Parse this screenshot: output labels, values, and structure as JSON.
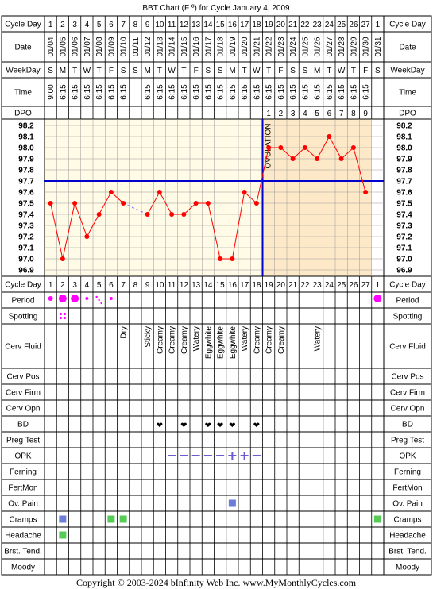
{
  "chart_data": {
    "type": "line",
    "title": "BBT Chart (F º) for Cycle January 4, 2009",
    "footer": "Copyright © 2003-2024 bInfinity Web Inc.    www.MyMonthlyCycles.com",
    "row_labels": {
      "cycle_day": "Cycle Day",
      "date": "Date",
      "weekday": "WeekDay",
      "time": "Time",
      "dpo": "DPO",
      "period": "Period",
      "spotting": "Spotting",
      "cerv_fluid": "Cerv Fluid",
      "cerv_pos": "Cerv Pos",
      "cerv_firm": "Cerv Firm",
      "cerv_opn": "Cerv Opn",
      "bd": "BD",
      "preg_test": "Preg Test",
      "opk": "OPK",
      "ferning": "Ferning",
      "fertmon": "FertMon",
      "ov_pain": "Ov. Pain",
      "cramps": "Cramps",
      "headache": "Headache",
      "brst_tend": "Brst. Tend.",
      "moody": "Moody"
    },
    "cycle_days": [
      "1",
      "2",
      "3",
      "4",
      "5",
      "6",
      "7",
      "8",
      "9",
      "10",
      "11",
      "12",
      "13",
      "14",
      "15",
      "16",
      "17",
      "18",
      "19",
      "20",
      "21",
      "22",
      "23",
      "24",
      "25",
      "26",
      "27",
      "1"
    ],
    "dates": [
      "01/04",
      "01/05",
      "01/06",
      "01/07",
      "01/08",
      "01/09",
      "01/10",
      "01/11",
      "01/12",
      "01/13",
      "01/14",
      "01/15",
      "01/16",
      "01/17",
      "01/18",
      "01/19",
      "01/20",
      "01/21",
      "01/22",
      "01/23",
      "01/24",
      "01/25",
      "01/26",
      "01/27",
      "01/28",
      "01/29",
      "01/30",
      "01/31"
    ],
    "weekdays": [
      "S",
      "M",
      "T",
      "W",
      "T",
      "F",
      "S",
      "S",
      "M",
      "T",
      "W",
      "T",
      "F",
      "S",
      "S",
      "M",
      "T",
      "W",
      "T",
      "F",
      "S",
      "S",
      "M",
      "T",
      "W",
      "T",
      "F",
      "S"
    ],
    "times": [
      "9:00",
      "6:15",
      "6:15",
      "6:15",
      "6:15",
      "6:15",
      "6:15",
      "",
      "6:15",
      "6:15",
      "6:15",
      "6:15",
      "6:15",
      "6:15",
      "6:15",
      "6:15",
      "6:15",
      "6:15",
      "6:15",
      "6:15",
      "6:15",
      "6:15",
      "6:15",
      "6:15",
      "6:15",
      "6:15",
      "6:15",
      ""
    ],
    "dpo": [
      "",
      "",
      "",
      "",
      "",
      "",
      "",
      "",
      "",
      "",
      "",
      "",
      "",
      "",
      "",
      "",
      "",
      "",
      "1",
      "2",
      "3",
      "4",
      "5",
      "6",
      "7",
      "8",
      "9",
      ""
    ],
    "y_ticks": [
      "98.2",
      "98.1",
      "98.0",
      "97.9",
      "97.8",
      "97.7",
      "97.6",
      "97.5",
      "97.4",
      "97.3",
      "97.2",
      "97.1",
      "97.0",
      "96.9"
    ],
    "ylim": [
      96.9,
      98.2
    ],
    "temps": [
      97.5,
      97.0,
      97.5,
      97.2,
      97.4,
      97.6,
      97.5,
      null,
      97.4,
      97.6,
      97.4,
      97.4,
      97.5,
      97.5,
      97.0,
      97.0,
      97.6,
      97.5,
      98.0,
      98.0,
      97.9,
      98.0,
      97.9,
      98.1,
      97.9,
      98.0,
      97.6,
      null
    ],
    "coverline": 97.7,
    "ovulation_day": 18,
    "ovulation_label": "OVULATION",
    "period": [
      "medium",
      "heavy",
      "heavy",
      "light",
      "spotting",
      "light",
      "",
      "",
      "",
      "",
      "",
      "",
      "",
      "",
      "",
      "",
      "",
      "",
      "",
      "",
      "",
      "",
      "",
      "",
      "",
      "",
      "",
      "heavy"
    ],
    "spotting": [
      "",
      "spotting",
      "",
      "",
      "",
      "",
      "",
      "",
      "",
      "",
      "",
      "",
      "",
      "",
      "",
      "",
      "",
      "",
      "",
      "",
      "",
      "",
      "",
      "",
      "",
      "",
      "",
      ""
    ],
    "cerv_fluid": [
      "",
      "",
      "",
      "",
      "",
      "",
      "Dry",
      "",
      "Sticky",
      "Creamy",
      "Creamy",
      "Creamy",
      "Watery",
      "Eggwhite",
      "Eggwhite",
      "Eggwhite",
      "Watery",
      "Creamy",
      "Creamy",
      "Creamy",
      "",
      "",
      "Watery",
      "",
      "",
      "",
      "",
      ""
    ],
    "bd": [
      false,
      false,
      false,
      false,
      false,
      false,
      false,
      false,
      false,
      true,
      false,
      true,
      false,
      true,
      true,
      true,
      false,
      true,
      false,
      false,
      false,
      false,
      false,
      false,
      false,
      false,
      false,
      false
    ],
    "opk": [
      "",
      "",
      "",
      "",
      "",
      "",
      "",
      "",
      "",
      "",
      "neg",
      "neg",
      "neg",
      "neg",
      "neg",
      "pos",
      "pos",
      "neg",
      "",
      "",
      "",
      "",
      "",
      "",
      "",
      "",
      "",
      ""
    ],
    "ov_pain": [
      false,
      false,
      false,
      false,
      false,
      false,
      false,
      false,
      false,
      false,
      false,
      false,
      false,
      false,
      false,
      true,
      false,
      false,
      false,
      false,
      false,
      false,
      false,
      false,
      false,
      false,
      false,
      false
    ],
    "cramps": [
      "",
      "blue",
      "",
      "",
      "",
      "green",
      "green",
      "",
      "",
      "",
      "",
      "",
      "",
      "",
      "",
      "",
      "",
      "",
      "",
      "",
      "",
      "",
      "",
      "",
      "",
      "",
      "",
      "green"
    ],
    "headache": [
      "",
      "green",
      "",
      "",
      "",
      "",
      "",
      "",
      "",
      "",
      "",
      "",
      "",
      "",
      "",
      "",
      "",
      "",
      "",
      "",
      "",
      "",
      "",
      "",
      "",
      "",
      "",
      ""
    ],
    "colors": {
      "temp_line": "#ff0000",
      "coverline": "#0000cc",
      "ovulation_line": "#0000cc",
      "grid": "#999999",
      "pre_ov_bg": "#fffbe6",
      "post_ov_bg": "#fde9c7",
      "period": "#ff00ff",
      "bd": "#e0307a",
      "opk": "#6a5acd",
      "blue_sym": "#6b7fd6",
      "green_sym": "#55cc55"
    }
  }
}
